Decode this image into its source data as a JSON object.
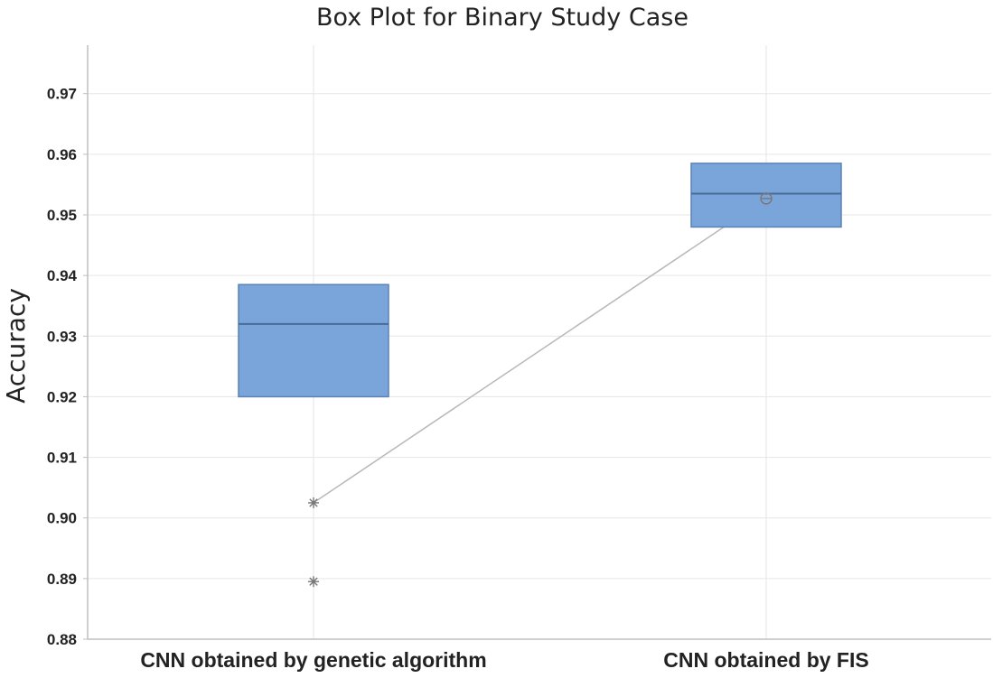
{
  "chart_data": {
    "type": "box",
    "title": "Box Plot for Binary Study Case",
    "xlabel": "",
    "ylabel": "Accuracy",
    "ylim": [
      0.88,
      0.978
    ],
    "yticks": [
      "0.88",
      "0.89",
      "0.90",
      "0.91",
      "0.92",
      "0.93",
      "0.94",
      "0.95",
      "0.96",
      "0.97"
    ],
    "grid": true,
    "categories": [
      "CNN obtained by genetic algorithm",
      "CNN obtained by FIS"
    ],
    "boxes": [
      {
        "category": "CNN obtained by genetic algorithm",
        "q1": 0.92,
        "median": 0.932,
        "q3": 0.9385,
        "mean": 0.9025,
        "outliers": [
          0.9025,
          0.8895
        ]
      },
      {
        "category": "CNN obtained by FIS",
        "q1": 0.948,
        "median": 0.9535,
        "q3": 0.9585,
        "mean": 0.9527,
        "outliers": []
      }
    ],
    "mean_connect_line": true,
    "colors": {
      "box_fill": "#7aa5da",
      "box_stroke": "#5a82b4",
      "median": "#4a6a96",
      "mean_line": "#b8b8b8",
      "marker": "#777777",
      "grid": "#e6e6e6",
      "axis": "#bfbfbf"
    }
  }
}
